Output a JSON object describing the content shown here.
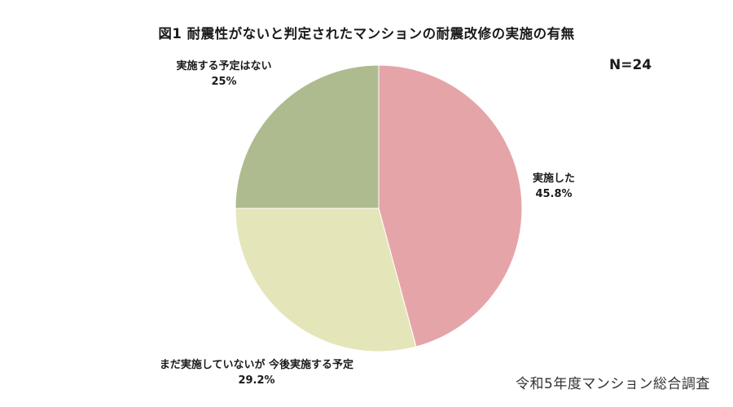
{
  "title": "図1  耐震性がないと判定されたマンションの耐震改修の実施の有無",
  "n_label": "N=24",
  "source": "令和5年度マンション総合調査",
  "chart_data": {
    "type": "pie",
    "title": "図1  耐震性がないと判定されたマンションの耐震改修の実施の有無",
    "n": 24,
    "start_angle_deg": 0,
    "direction": "clockwise",
    "categories": [
      "実施した",
      "まだ実施していないが 今後実施する予定",
      "実施する予定はない"
    ],
    "values": [
      45.8,
      29.2,
      25.0
    ],
    "value_labels": [
      "45.8%",
      "29.2%",
      "25%"
    ],
    "colors": [
      "#E5A5A8",
      "#E5E5BA",
      "#ADBB8F"
    ],
    "legend": "none (data labels beside slices)",
    "source_note": "令和5年度マンション総合調査"
  },
  "labels": {
    "done": {
      "name": "実施した",
      "pct": "45.8%"
    },
    "planned": {
      "name": "まだ実施していないが 今後実施する予定",
      "pct": "29.2%"
    },
    "none": {
      "name": "実施する予定はない",
      "pct": "25%"
    }
  }
}
